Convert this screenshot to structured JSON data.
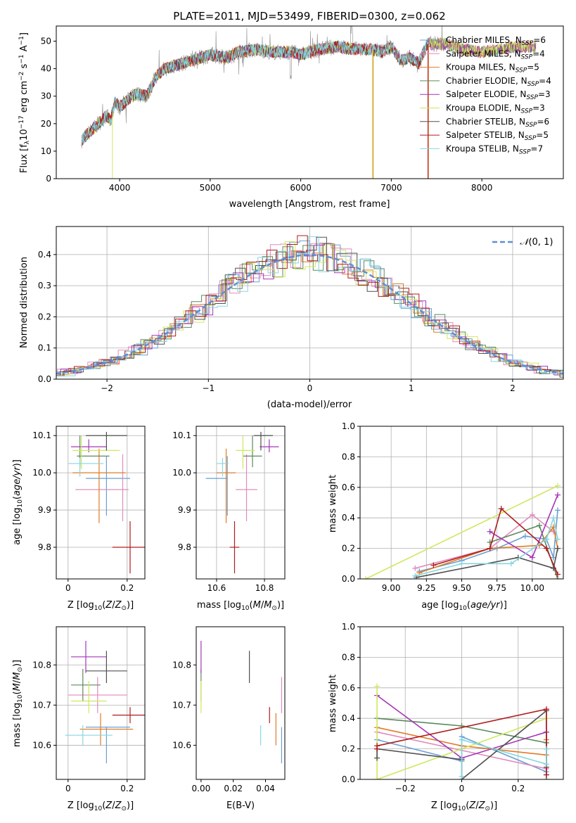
{
  "figure_title": "PLATE=2011, MJD=53499, FIBERID=0300, z=0.062",
  "colors": {
    "Chabrier MILES": "#6a9fd3",
    "Salpeter MILES": "#e08bbd",
    "Kroupa MILES": "#e07c26",
    "Chabrier ELODIE": "#5b8a5e",
    "Salpeter ELODIE": "#a437b7",
    "Kroupa ELODIE": "#cfe85e",
    "Chabrier STELIB": "#505050",
    "Salpeter STELIB": "#b01c1c",
    "Kroupa STELIB": "#86d6e0"
  },
  "chart_data": [
    {
      "id": "spectrum",
      "type": "line",
      "title": "PLATE=2011, MJD=53499, FIBERID=0300, z=0.062",
      "xlabel": "wavelength [Angstrom, rest frame]",
      "ylabel": "Flux [f_λ10^-17 erg cm^-2 s^-1 A^-1]",
      "xlim": [
        3300,
        8900
      ],
      "ylim": [
        0,
        55.5
      ],
      "xticks": [
        4000,
        5000,
        6000,
        7000,
        8000
      ],
      "yticks": [
        0,
        10,
        20,
        30,
        40,
        50
      ],
      "grid": false,
      "legend_position": "right",
      "continuum": {
        "x": [
          3580,
          3700,
          3800,
          3850,
          3900,
          3950,
          4000,
          4100,
          4200,
          4300,
          4400,
          4500,
          4600,
          4800,
          5000,
          5200,
          5300,
          5500,
          5700,
          5900,
          6000,
          6200,
          6400,
          6600,
          6800,
          6900,
          7000,
          7100,
          7200,
          7300,
          7400,
          7600,
          7800,
          8000,
          8200,
          8400,
          8600
        ],
        "y": [
          14,
          18,
          21,
          23,
          21,
          28,
          26,
          29,
          31,
          30,
          37,
          40,
          41,
          43,
          45,
          44,
          46,
          47,
          46,
          46,
          45,
          47,
          48,
          47,
          47,
          46,
          48,
          43,
          44,
          42,
          49,
          49,
          47,
          46,
          47,
          48,
          48
        ]
      },
      "series": [
        {
          "name": "Chabrier MILES",
          "nssp": 6
        },
        {
          "name": "Salpeter MILES",
          "nssp": 4
        },
        {
          "name": "Kroupa MILES",
          "nssp": 5
        },
        {
          "name": "Chabrier ELODIE",
          "nssp": 4
        },
        {
          "name": "Salpeter ELODIE",
          "nssp": 3
        },
        {
          "name": "Kroupa ELODIE",
          "nssp": 3
        },
        {
          "name": "Chabrier STELIB",
          "nssp": 6
        },
        {
          "name": "Salpeter STELIB",
          "nssp": 5
        },
        {
          "name": "Kroupa STELIB",
          "nssp": 7
        }
      ]
    },
    {
      "id": "residuals",
      "type": "line",
      "xlabel": "(data-model)/error",
      "ylabel": "Normed distribution",
      "xlim": [
        -2.5,
        2.5
      ],
      "ylim": [
        0,
        0.49
      ],
      "xticks": [
        -2,
        -1,
        0,
        1,
        2
      ],
      "yticks": [
        0.0,
        0.1,
        0.2,
        0.3,
        0.4
      ],
      "grid": true,
      "legend": "N(0,1)",
      "legend_position": "top-right",
      "bin_width": 0.1
    },
    {
      "id": "age_vs_Z",
      "type": "scatter",
      "xlabel": "Z [log10(Z/Z⊙)]",
      "ylabel": "age  [log10(age/yr)]",
      "xlim": [
        -0.04,
        0.26
      ],
      "ylim": [
        9.715,
        10.125
      ],
      "xticks": [
        0.0,
        0.2
      ],
      "yticks": [
        9.8,
        9.9,
        10.0,
        10.1
      ],
      "grid": true,
      "points": [
        {
          "series": "Chabrier MILES",
          "x": 0.13,
          "xerr": [
            0.07,
            0.08
          ],
          "y": 9.985,
          "yerr": [
            0.1,
            0.06
          ]
        },
        {
          "series": "Salpeter MILES",
          "x": 0.185,
          "xerr": [
            0.16,
            0.02
          ],
          "y": 9.955,
          "yerr": [
            0.085,
            0.095
          ]
        },
        {
          "series": "Kroupa MILES",
          "x": 0.105,
          "xerr": [
            0.09,
            0.09
          ],
          "y": 10.0,
          "yerr": [
            0.135,
            0.065
          ]
        },
        {
          "series": "Chabrier ELODIE",
          "x": 0.04,
          "xerr": [
            0.01,
            0.1
          ],
          "y": 10.045,
          "yerr": [
            0.03,
            0.055
          ]
        },
        {
          "series": "Salpeter ELODIE",
          "x": 0.07,
          "xerr": [
            0.06,
            0.06
          ],
          "y": 10.07,
          "yerr": [
            0.015,
            0.02
          ]
        },
        {
          "series": "Kroupa ELODIE",
          "x": 0.045,
          "xerr": [
            0.03,
            0.13
          ],
          "y": 10.06,
          "yerr": [
            0.05,
            0.04
          ]
        },
        {
          "series": "Chabrier STELIB",
          "x": 0.13,
          "xerr": [
            0.07,
            0.07
          ],
          "y": 10.1,
          "yerr": [
            0.04,
            0.01
          ]
        },
        {
          "series": "Salpeter STELIB",
          "x": 0.21,
          "xerr": [
            0.06,
            0.06
          ],
          "y": 9.8,
          "yerr": [
            0.07,
            0.07
          ]
        },
        {
          "series": "Kroupa STELIB",
          "x": 0.04,
          "xerr": [
            0.04,
            0.08
          ],
          "y": 10.025,
          "yerr": [
            0.035,
            0.015
          ]
        }
      ]
    },
    {
      "id": "age_vs_mass",
      "type": "scatter",
      "xlabel": "mass [log10(M/M⊙)]",
      "ylabel": "",
      "xlim": [
        10.515,
        10.885
      ],
      "ylim": [
        9.715,
        10.125
      ],
      "xticks": [
        10.6,
        10.8
      ],
      "yticks": [
        9.8,
        9.9,
        10.0,
        10.1
      ],
      "grid": true,
      "points": [
        {
          "series": "Chabrier MILES",
          "x": 10.645,
          "xerr": [
            0.09,
            0.0
          ],
          "y": 9.985,
          "yerr": [
            0.1,
            0.06
          ]
        },
        {
          "series": "Salpeter MILES",
          "x": 10.725,
          "xerr": [
            0.045,
            0.045
          ],
          "y": 9.955,
          "yerr": [
            0.085,
            0.095
          ]
        },
        {
          "series": "Kroupa MILES",
          "x": 10.64,
          "xerr": [
            0.04,
            0.04
          ],
          "y": 10.0,
          "yerr": [
            0.135,
            0.065
          ]
        },
        {
          "series": "Chabrier ELODIE",
          "x": 10.75,
          "xerr": [
            0.04,
            0.04
          ],
          "y": 10.045,
          "yerr": [
            0.03,
            0.055
          ]
        },
        {
          "series": "Salpeter ELODIE",
          "x": 10.82,
          "xerr": [
            0.04,
            0.04
          ],
          "y": 10.07,
          "yerr": [
            0.015,
            0.02
          ]
        },
        {
          "series": "Kroupa ELODIE",
          "x": 10.71,
          "xerr": [
            0.03,
            0.05
          ],
          "y": 10.06,
          "yerr": [
            0.05,
            0.04
          ]
        },
        {
          "series": "Chabrier STELIB",
          "x": 10.785,
          "xerr": [
            0.03,
            0.05
          ],
          "y": 10.1,
          "yerr": [
            0.04,
            0.01
          ]
        },
        {
          "series": "Salpeter STELIB",
          "x": 10.675,
          "xerr": [
            0.02,
            0.02
          ],
          "y": 9.8,
          "yerr": [
            0.07,
            0.07
          ]
        },
        {
          "series": "Kroupa STELIB",
          "x": 10.625,
          "xerr": [
            0.025,
            0.025
          ],
          "y": 10.025,
          "yerr": [
            0.035,
            0.015
          ]
        }
      ]
    },
    {
      "id": "massweight_vs_age",
      "type": "line",
      "xlabel": "age  [log10(age/yr)]",
      "ylabel": "mass weight",
      "xlim": [
        8.78,
        10.22
      ],
      "ylim": [
        0,
        1.0
      ],
      "xticks": [
        9.0,
        9.25,
        9.5,
        9.75,
        10.0
      ],
      "tick_labels": [
        "9.00",
        "9.25",
        "9.50",
        "9.75",
        "10.00"
      ],
      "yticks": [
        0.0,
        0.2,
        0.4,
        0.6,
        0.8,
        1.0
      ],
      "grid": true,
      "series": [
        {
          "name": "Chabrier MILES",
          "x": [
            9.2,
            9.5,
            9.75,
            9.95,
            10.1,
            10.15,
            10.18
          ],
          "y": [
            0.05,
            0.12,
            0.2,
            0.28,
            0.26,
            0.14,
            0.45
          ]
        },
        {
          "name": "Salpeter MILES",
          "x": [
            9.17,
            9.7,
            10.0,
            10.15
          ],
          "y": [
            0.07,
            0.2,
            0.42,
            0.31
          ]
        },
        {
          "name": "Kroupa MILES",
          "x": [
            9.2,
            9.7,
            10.05,
            10.15,
            10.18
          ],
          "y": [
            0.04,
            0.2,
            0.22,
            0.34,
            0.2
          ]
        },
        {
          "name": "Chabrier ELODIE",
          "x": [
            9.7,
            10.05,
            10.18
          ],
          "y": [
            0.24,
            0.35,
            0.0
          ]
        },
        {
          "name": "Salpeter ELODIE",
          "x": [
            9.7,
            10.0,
            10.18
          ],
          "y": [
            0.31,
            0.14,
            0.55
          ]
        },
        {
          "name": "Kroupa ELODIE",
          "x": [
            8.82,
            10.18
          ],
          "y": [
            0.0,
            0.61
          ]
        },
        {
          "name": "Chabrier STELIB",
          "x": [
            9.18,
            9.9,
            10.15,
            10.18
          ],
          "y": [
            0.01,
            0.14,
            0.07,
            0.2
          ]
        },
        {
          "name": "Salpeter STELIB",
          "x": [
            9.3,
            9.7,
            9.78,
            10.1,
            10.18
          ],
          "y": [
            0.09,
            0.2,
            0.46,
            0.2,
            0.03
          ]
        },
        {
          "name": "Kroupa STELIB",
          "x": [
            9.17,
            9.5,
            9.85,
            10.1,
            10.15,
            10.18
          ],
          "y": [
            0.02,
            0.1,
            0.1,
            0.26,
            0.4,
            0.26
          ]
        }
      ]
    },
    {
      "id": "mass_vs_Z",
      "type": "scatter",
      "xlabel": "Z [log10(Z/Z⊙)]",
      "ylabel": "mass [log10(M/M⊙)]",
      "xlim": [
        -0.04,
        0.26
      ],
      "ylim": [
        10.515,
        10.895
      ],
      "xticks": [
        0.0,
        0.2
      ],
      "yticks": [
        10.6,
        10.7,
        10.8
      ],
      "grid": true,
      "points": [
        {
          "series": "Chabrier MILES",
          "x": 0.13,
          "xerr": [
            0.07,
            0.08
          ],
          "y": 10.645,
          "yerr": [
            0.09,
            0.0
          ]
        },
        {
          "series": "Salpeter MILES",
          "x": 0.1,
          "xerr": [
            0.1,
            0.1
          ],
          "y": 10.725,
          "yerr": [
            0.045,
            0.045
          ]
        },
        {
          "series": "Kroupa MILES",
          "x": 0.11,
          "xerr": [
            0.07,
            0.11
          ],
          "y": 10.64,
          "yerr": [
            0.04,
            0.04
          ]
        },
        {
          "series": "Chabrier ELODIE",
          "x": 0.05,
          "xerr": [
            0.04,
            0.06
          ],
          "y": 10.75,
          "yerr": [
            0.04,
            0.04
          ]
        },
        {
          "series": "Salpeter ELODIE",
          "x": 0.06,
          "xerr": [
            0.05,
            0.07
          ],
          "y": 10.82,
          "yerr": [
            0.04,
            0.04
          ]
        },
        {
          "series": "Kroupa ELODIE",
          "x": 0.07,
          "xerr": [
            0.06,
            0.06
          ],
          "y": 10.71,
          "yerr": [
            0.03,
            0.05
          ]
        },
        {
          "series": "Chabrier STELIB",
          "x": 0.13,
          "xerr": [
            0.07,
            0.07
          ],
          "y": 10.785,
          "yerr": [
            0.03,
            0.05
          ]
        },
        {
          "series": "Salpeter STELIB",
          "x": 0.21,
          "xerr": [
            0.06,
            0.06
          ],
          "y": 10.675,
          "yerr": [
            0.02,
            0.02
          ]
        },
        {
          "series": "Kroupa STELIB",
          "x": 0.05,
          "xerr": [
            0.06,
            0.1
          ],
          "y": 10.625,
          "yerr": [
            0.025,
            0.025
          ]
        }
      ]
    },
    {
      "id": "mass_vs_ebv",
      "type": "scatter",
      "xlabel": "E(B-V)",
      "ylabel": "",
      "xlim": [
        -0.003,
        0.052
      ],
      "ylim": [
        10.515,
        10.895
      ],
      "xticks": [
        0.0,
        0.02,
        0.04
      ],
      "tick_labels": [
        "0.00",
        "0.02",
        "0.04"
      ],
      "yticks": [
        10.6,
        10.7,
        10.8
      ],
      "grid": false,
      "points": [
        {
          "series": "Chabrier MILES",
          "x": 0.05,
          "y": 10.645,
          "yerr": [
            0.09,
            0.0
          ]
        },
        {
          "series": "Salpeter MILES",
          "x": 0.05,
          "y": 10.725,
          "yerr": [
            0.045,
            0.045
          ]
        },
        {
          "series": "Kroupa MILES",
          "x": 0.0465,
          "y": 10.64,
          "yerr": [
            0.04,
            0.04
          ]
        },
        {
          "series": "Chabrier ELODIE",
          "x": 0.0,
          "y": 10.75,
          "yerr": [
            0.04,
            0.04
          ]
        },
        {
          "series": "Salpeter ELODIE",
          "x": 0.0,
          "y": 10.82,
          "yerr": [
            0.04,
            0.04
          ]
        },
        {
          "series": "Kroupa ELODIE",
          "x": 0.0,
          "y": 10.71,
          "yerr": [
            0.03,
            0.05
          ]
        },
        {
          "series": "Chabrier STELIB",
          "x": 0.03,
          "y": 10.785,
          "yerr": [
            0.03,
            0.05
          ]
        },
        {
          "series": "Salpeter STELIB",
          "x": 0.0425,
          "y": 10.675,
          "yerr": [
            0.02,
            0.02
          ]
        },
        {
          "series": "Kroupa STELIB",
          "x": 0.037,
          "y": 10.625,
          "yerr": [
            0.025,
            0.025
          ]
        }
      ]
    },
    {
      "id": "massweight_vs_Z",
      "type": "line",
      "xlabel": "Z [log10(Z/Z⊙)]",
      "ylabel": "mass weight",
      "xlim": [
        -0.36,
        0.36
      ],
      "ylim": [
        0,
        1.0
      ],
      "xticks": [
        -0.2,
        0.0,
        0.2
      ],
      "yticks": [
        0.0,
        0.2,
        0.4,
        0.6,
        0.8,
        1.0
      ],
      "grid": true,
      "series": [
        {
          "name": "Chabrier MILES",
          "x": [
            -0.3,
            0.0,
            0.0,
            0.3,
            0.3
          ],
          "y": [
            0.26,
            0.12,
            0.28,
            0.05,
            0.2
          ]
        },
        {
          "name": "Salpeter MILES",
          "x": [
            -0.3,
            0.3,
            0.3
          ],
          "y": [
            0.31,
            0.07,
            0.31
          ]
        },
        {
          "name": "Kroupa MILES",
          "x": [
            -0.3,
            0.0,
            0.3,
            0.3
          ],
          "y": [
            0.34,
            0.22,
            0.16,
            0.26
          ]
        },
        {
          "name": "Chabrier ELODIE",
          "x": [
            -0.3,
            0.0,
            0.3,
            0.3
          ],
          "y": [
            0.4,
            0.35,
            0.24,
            0.0
          ]
        },
        {
          "name": "Salpeter ELODIE",
          "x": [
            -0.3,
            0.0,
            0.3,
            0.3
          ],
          "y": [
            0.55,
            0.14,
            0.31,
            0.03
          ]
        },
        {
          "name": "Kroupa ELODIE",
          "x": [
            -0.3,
            -0.3,
            0.3
          ],
          "y": [
            0.61,
            0.0,
            0.4
          ]
        },
        {
          "name": "Chabrier STELIB",
          "x": [
            -0.3,
            -0.3,
            0.0,
            0.0,
            0.3,
            0.3
          ],
          "y": [
            0.14,
            0.2,
            0.13,
            0.0,
            0.45,
            0.08
          ]
        },
        {
          "name": "Salpeter STELIB",
          "x": [
            -0.3,
            -0.3,
            0.3,
            0.3
          ],
          "y": [
            0.2,
            0.22,
            0.46,
            0.03
          ]
        },
        {
          "name": "Kroupa STELIB",
          "x": [
            0.0,
            0.0,
            0.3,
            0.3
          ],
          "y": [
            0.02,
            0.26,
            0.1,
            0.2
          ]
        }
      ]
    }
  ]
}
